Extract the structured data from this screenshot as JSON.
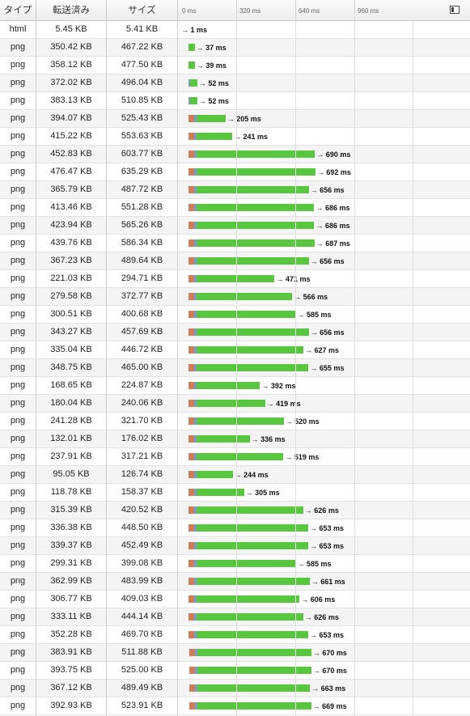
{
  "columns": {
    "type": "タイプ",
    "transferred": "転送済み",
    "size": "サイズ"
  },
  "timeline_ticks": [
    "0 ms",
    "320 ms",
    "640 ms",
    "960 ms"
  ],
  "timeline_scale": {
    "max_ms": 1450
  },
  "colors": {
    "waiting": "#d07e57",
    "dns": "#7b9ac5",
    "receiving": "#59c640"
  },
  "rows": [
    {
      "type": "html",
      "transferred": "5.45 KB",
      "size": "5.41 KB",
      "time": "→ 1 ms",
      "end_ms": 1,
      "start_ms": 0,
      "wait_ms": 0,
      "dns_ms": 0
    },
    {
      "type": "png",
      "transferred": "350.42 KB",
      "size": "467.22 KB",
      "time": "→ 37 ms",
      "end_ms": 37,
      "start_ms": 38,
      "wait_ms": 0,
      "dns_ms": 0
    },
    {
      "type": "png",
      "transferred": "358.12 KB",
      "size": "477.50 KB",
      "time": "→ 39 ms",
      "end_ms": 39,
      "start_ms": 38,
      "wait_ms": 0,
      "dns_ms": 0
    },
    {
      "type": "png",
      "transferred": "372.02 KB",
      "size": "496.04 KB",
      "time": "→ 52 ms",
      "end_ms": 52,
      "start_ms": 38,
      "wait_ms": 0,
      "dns_ms": 12
    },
    {
      "type": "png",
      "transferred": "383.13 KB",
      "size": "510.85 KB",
      "time": "→ 52 ms",
      "end_ms": 52,
      "start_ms": 38,
      "wait_ms": 0,
      "dns_ms": 12
    },
    {
      "type": "png",
      "transferred": "394.07 KB",
      "size": "525.43 KB",
      "time": "→ 205 ms",
      "end_ms": 205,
      "start_ms": 38,
      "wait_ms": 32,
      "dns_ms": 12
    },
    {
      "type": "png",
      "transferred": "415.22 KB",
      "size": "553.63 KB",
      "time": "→ 241 ms",
      "end_ms": 241,
      "start_ms": 38,
      "wait_ms": 32,
      "dns_ms": 12
    },
    {
      "type": "png",
      "transferred": "452.83 KB",
      "size": "603.77 KB",
      "time": "→ 690 ms",
      "end_ms": 690,
      "start_ms": 38,
      "wait_ms": 32,
      "dns_ms": 12
    },
    {
      "type": "png",
      "transferred": "476.47 KB",
      "size": "635.29 KB",
      "time": "→ 692 ms",
      "end_ms": 692,
      "start_ms": 38,
      "wait_ms": 32,
      "dns_ms": 12
    },
    {
      "type": "png",
      "transferred": "365.79 KB",
      "size": "487.72 KB",
      "time": "→ 656 ms",
      "end_ms": 656,
      "start_ms": 38,
      "wait_ms": 32,
      "dns_ms": 12
    },
    {
      "type": "png",
      "transferred": "413.46 KB",
      "size": "551.28 KB",
      "time": "→ 686 ms",
      "end_ms": 686,
      "start_ms": 38,
      "wait_ms": 32,
      "dns_ms": 12
    },
    {
      "type": "png",
      "transferred": "423.94 KB",
      "size": "565.26 KB",
      "time": "→ 686 ms",
      "end_ms": 686,
      "start_ms": 38,
      "wait_ms": 32,
      "dns_ms": 12
    },
    {
      "type": "png",
      "transferred": "439.76 KB",
      "size": "586.34 KB",
      "time": "→ 687 ms",
      "end_ms": 687,
      "start_ms": 38,
      "wait_ms": 32,
      "dns_ms": 12
    },
    {
      "type": "png",
      "transferred": "367.23 KB",
      "size": "489.64 KB",
      "time": "→ 656 ms",
      "end_ms": 656,
      "start_ms": 38,
      "wait_ms": 32,
      "dns_ms": 12
    },
    {
      "type": "png",
      "transferred": "221.03 KB",
      "size": "294.71 KB",
      "time": "→ 471 ms",
      "end_ms": 471,
      "start_ms": 38,
      "wait_ms": 32,
      "dns_ms": 12
    },
    {
      "type": "png",
      "transferred": "279.58 KB",
      "size": "372.77 KB",
      "time": "→ 566 ms",
      "end_ms": 566,
      "start_ms": 38,
      "wait_ms": 32,
      "dns_ms": 12
    },
    {
      "type": "png",
      "transferred": "300.51 KB",
      "size": "400.68 KB",
      "time": "→ 585 ms",
      "end_ms": 585,
      "start_ms": 38,
      "wait_ms": 32,
      "dns_ms": 12
    },
    {
      "type": "png",
      "transferred": "343.27 KB",
      "size": "457.69 KB",
      "time": "→ 656 ms",
      "end_ms": 656,
      "start_ms": 38,
      "wait_ms": 32,
      "dns_ms": 12
    },
    {
      "type": "png",
      "transferred": "335.04 KB",
      "size": "446.72 KB",
      "time": "→ 627 ms",
      "end_ms": 627,
      "start_ms": 38,
      "wait_ms": 32,
      "dns_ms": 12
    },
    {
      "type": "png",
      "transferred": "348.75 KB",
      "size": "465.00 KB",
      "time": "→ 655 ms",
      "end_ms": 655,
      "start_ms": 38,
      "wait_ms": 32,
      "dns_ms": 12
    },
    {
      "type": "png",
      "transferred": "168.65 KB",
      "size": "224.87 KB",
      "time": "→ 392 ms",
      "end_ms": 392,
      "start_ms": 38,
      "wait_ms": 32,
      "dns_ms": 12
    },
    {
      "type": "png",
      "transferred": "180.04 KB",
      "size": "240.06 KB",
      "time": "→ 419 ms",
      "end_ms": 419,
      "start_ms": 38,
      "wait_ms": 32,
      "dns_ms": 12
    },
    {
      "type": "png",
      "transferred": "241.28 KB",
      "size": "321.70 KB",
      "time": "→ 520 ms",
      "end_ms": 520,
      "start_ms": 38,
      "wait_ms": 32,
      "dns_ms": 12
    },
    {
      "type": "png",
      "transferred": "132.01 KB",
      "size": "176.02 KB",
      "time": "→ 336 ms",
      "end_ms": 336,
      "start_ms": 38,
      "wait_ms": 32,
      "dns_ms": 12
    },
    {
      "type": "png",
      "transferred": "237.91 KB",
      "size": "317.21 KB",
      "time": "→ 519 ms",
      "end_ms": 519,
      "start_ms": 38,
      "wait_ms": 32,
      "dns_ms": 12
    },
    {
      "type": "png",
      "transferred": "95.05 KB",
      "size": "126.74 KB",
      "time": "→ 244 ms",
      "end_ms": 244,
      "start_ms": 38,
      "wait_ms": 32,
      "dns_ms": 12
    },
    {
      "type": "png",
      "transferred": "118.78 KB",
      "size": "158.37 KB",
      "time": "→ 305 ms",
      "end_ms": 305,
      "start_ms": 38,
      "wait_ms": 32,
      "dns_ms": 12
    },
    {
      "type": "png",
      "transferred": "315.39 KB",
      "size": "420.52 KB",
      "time": "→ 626 ms",
      "end_ms": 626,
      "start_ms": 38,
      "wait_ms": 32,
      "dns_ms": 12
    },
    {
      "type": "png",
      "transferred": "336.38 KB",
      "size": "448.50 KB",
      "time": "→ 653 ms",
      "end_ms": 653,
      "start_ms": 38,
      "wait_ms": 32,
      "dns_ms": 12
    },
    {
      "type": "png",
      "transferred": "339.37 KB",
      "size": "452.49 KB",
      "time": "→ 653 ms",
      "end_ms": 653,
      "start_ms": 38,
      "wait_ms": 32,
      "dns_ms": 12
    },
    {
      "type": "png",
      "transferred": "299.31 KB",
      "size": "399.08 KB",
      "time": "→ 585 ms",
      "end_ms": 585,
      "start_ms": 38,
      "wait_ms": 32,
      "dns_ms": 12
    },
    {
      "type": "png",
      "transferred": "362.99 KB",
      "size": "483.99 KB",
      "time": "→ 661 ms",
      "end_ms": 661,
      "start_ms": 38,
      "wait_ms": 32,
      "dns_ms": 12
    },
    {
      "type": "png",
      "transferred": "306.77 KB",
      "size": "409.03 KB",
      "time": "→ 606 ms",
      "end_ms": 606,
      "start_ms": 38,
      "wait_ms": 32,
      "dns_ms": 12
    },
    {
      "type": "png",
      "transferred": "333.11 KB",
      "size": "444.14 KB",
      "time": "→ 626 ms",
      "end_ms": 626,
      "start_ms": 38,
      "wait_ms": 32,
      "dns_ms": 12
    },
    {
      "type": "png",
      "transferred": "352.28 KB",
      "size": "469.70 KB",
      "time": "→ 653 ms",
      "end_ms": 653,
      "start_ms": 38,
      "wait_ms": 32,
      "dns_ms": 12
    },
    {
      "type": "png",
      "transferred": "383.91 KB",
      "size": "511.88 KB",
      "time": "→ 670 ms",
      "end_ms": 670,
      "start_ms": 44,
      "wait_ms": 32,
      "dns_ms": 12
    },
    {
      "type": "png",
      "transferred": "393.75 KB",
      "size": "525.00 KB",
      "time": "→ 670 ms",
      "end_ms": 670,
      "start_ms": 44,
      "wait_ms": 32,
      "dns_ms": 12
    },
    {
      "type": "png",
      "transferred": "367.12 KB",
      "size": "489.49 KB",
      "time": "→ 663 ms",
      "end_ms": 663,
      "start_ms": 44,
      "wait_ms": 32,
      "dns_ms": 12
    },
    {
      "type": "png",
      "transferred": "392.93 KB",
      "size": "523.91 KB",
      "time": "→ 669 ms",
      "end_ms": 669,
      "start_ms": 44,
      "wait_ms": 32,
      "dns_ms": 12
    }
  ]
}
